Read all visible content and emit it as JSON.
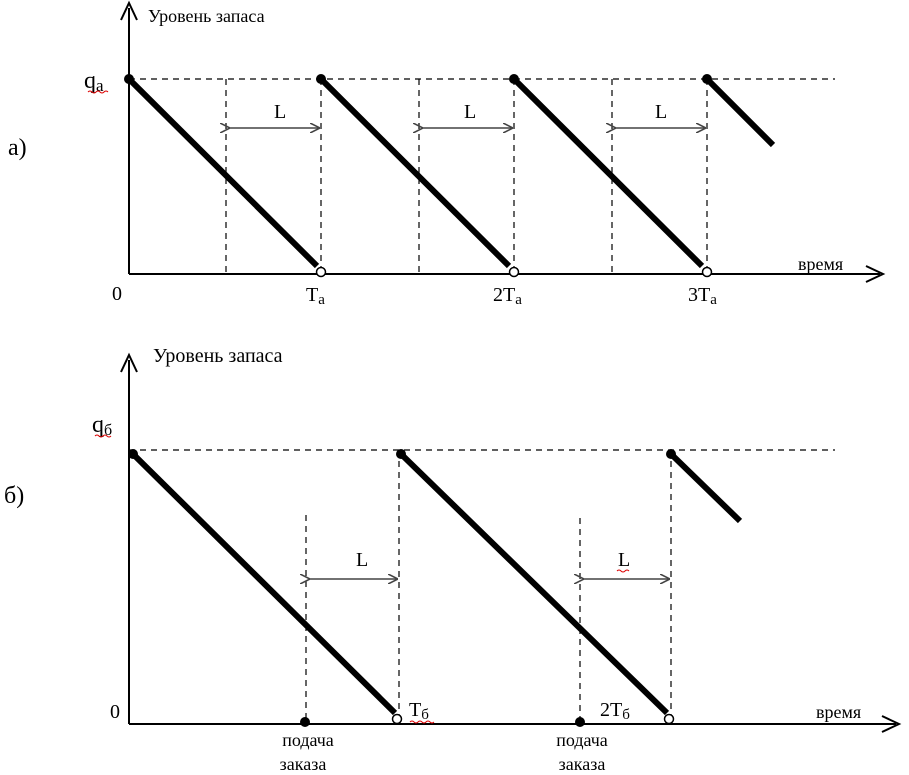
{
  "panel_a": {
    "tag": "а)",
    "y_axis_label": "Уровень запаса",
    "x_axis_label": "время",
    "q_label_main": "q",
    "q_label_sub": "а",
    "origin": "0",
    "lead_time_label": "L",
    "x_ticks": [
      {
        "main": "Т",
        "sub": "а"
      },
      {
        "main": "2Т",
        "sub": "а"
      },
      {
        "main": "3Т",
        "sub": "а"
      }
    ]
  },
  "panel_b": {
    "tag": "б)",
    "y_axis_label": "Уровень запаса",
    "x_axis_label": "время",
    "q_label_main": "q",
    "q_label_sub": "б",
    "origin": "0",
    "lead_time_label": "L",
    "x_ticks": [
      {
        "main": "Т",
        "sub": "б"
      },
      {
        "main": "2Т",
        "sub": "б"
      }
    ],
    "order_label_line1": "подача",
    "order_label_line2": "заказа"
  }
}
